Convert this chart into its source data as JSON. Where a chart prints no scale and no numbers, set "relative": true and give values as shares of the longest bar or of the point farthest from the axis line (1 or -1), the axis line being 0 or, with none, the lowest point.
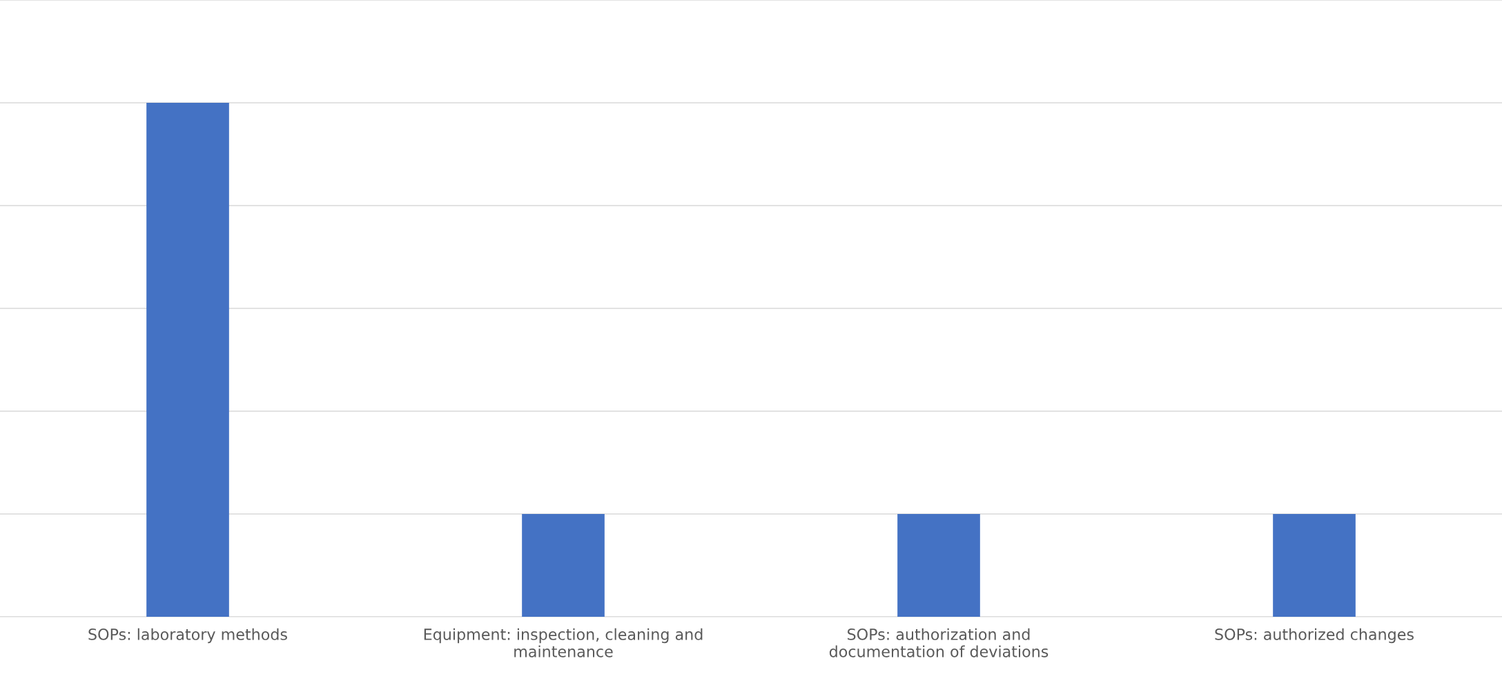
{
  "chart_data": {
    "type": "bar",
    "relative": true,
    "grid": "y",
    "categories": [
      "SOPs: laboratory methods",
      "Equipment: inspection, cleaning and maintenance",
      "SOPs: authorization and documentation of deviations",
      "SOPs: authorized changes"
    ],
    "values": [
      1,
      0.2,
      0.2,
      0.2
    ],
    "color": "#4472c4"
  }
}
